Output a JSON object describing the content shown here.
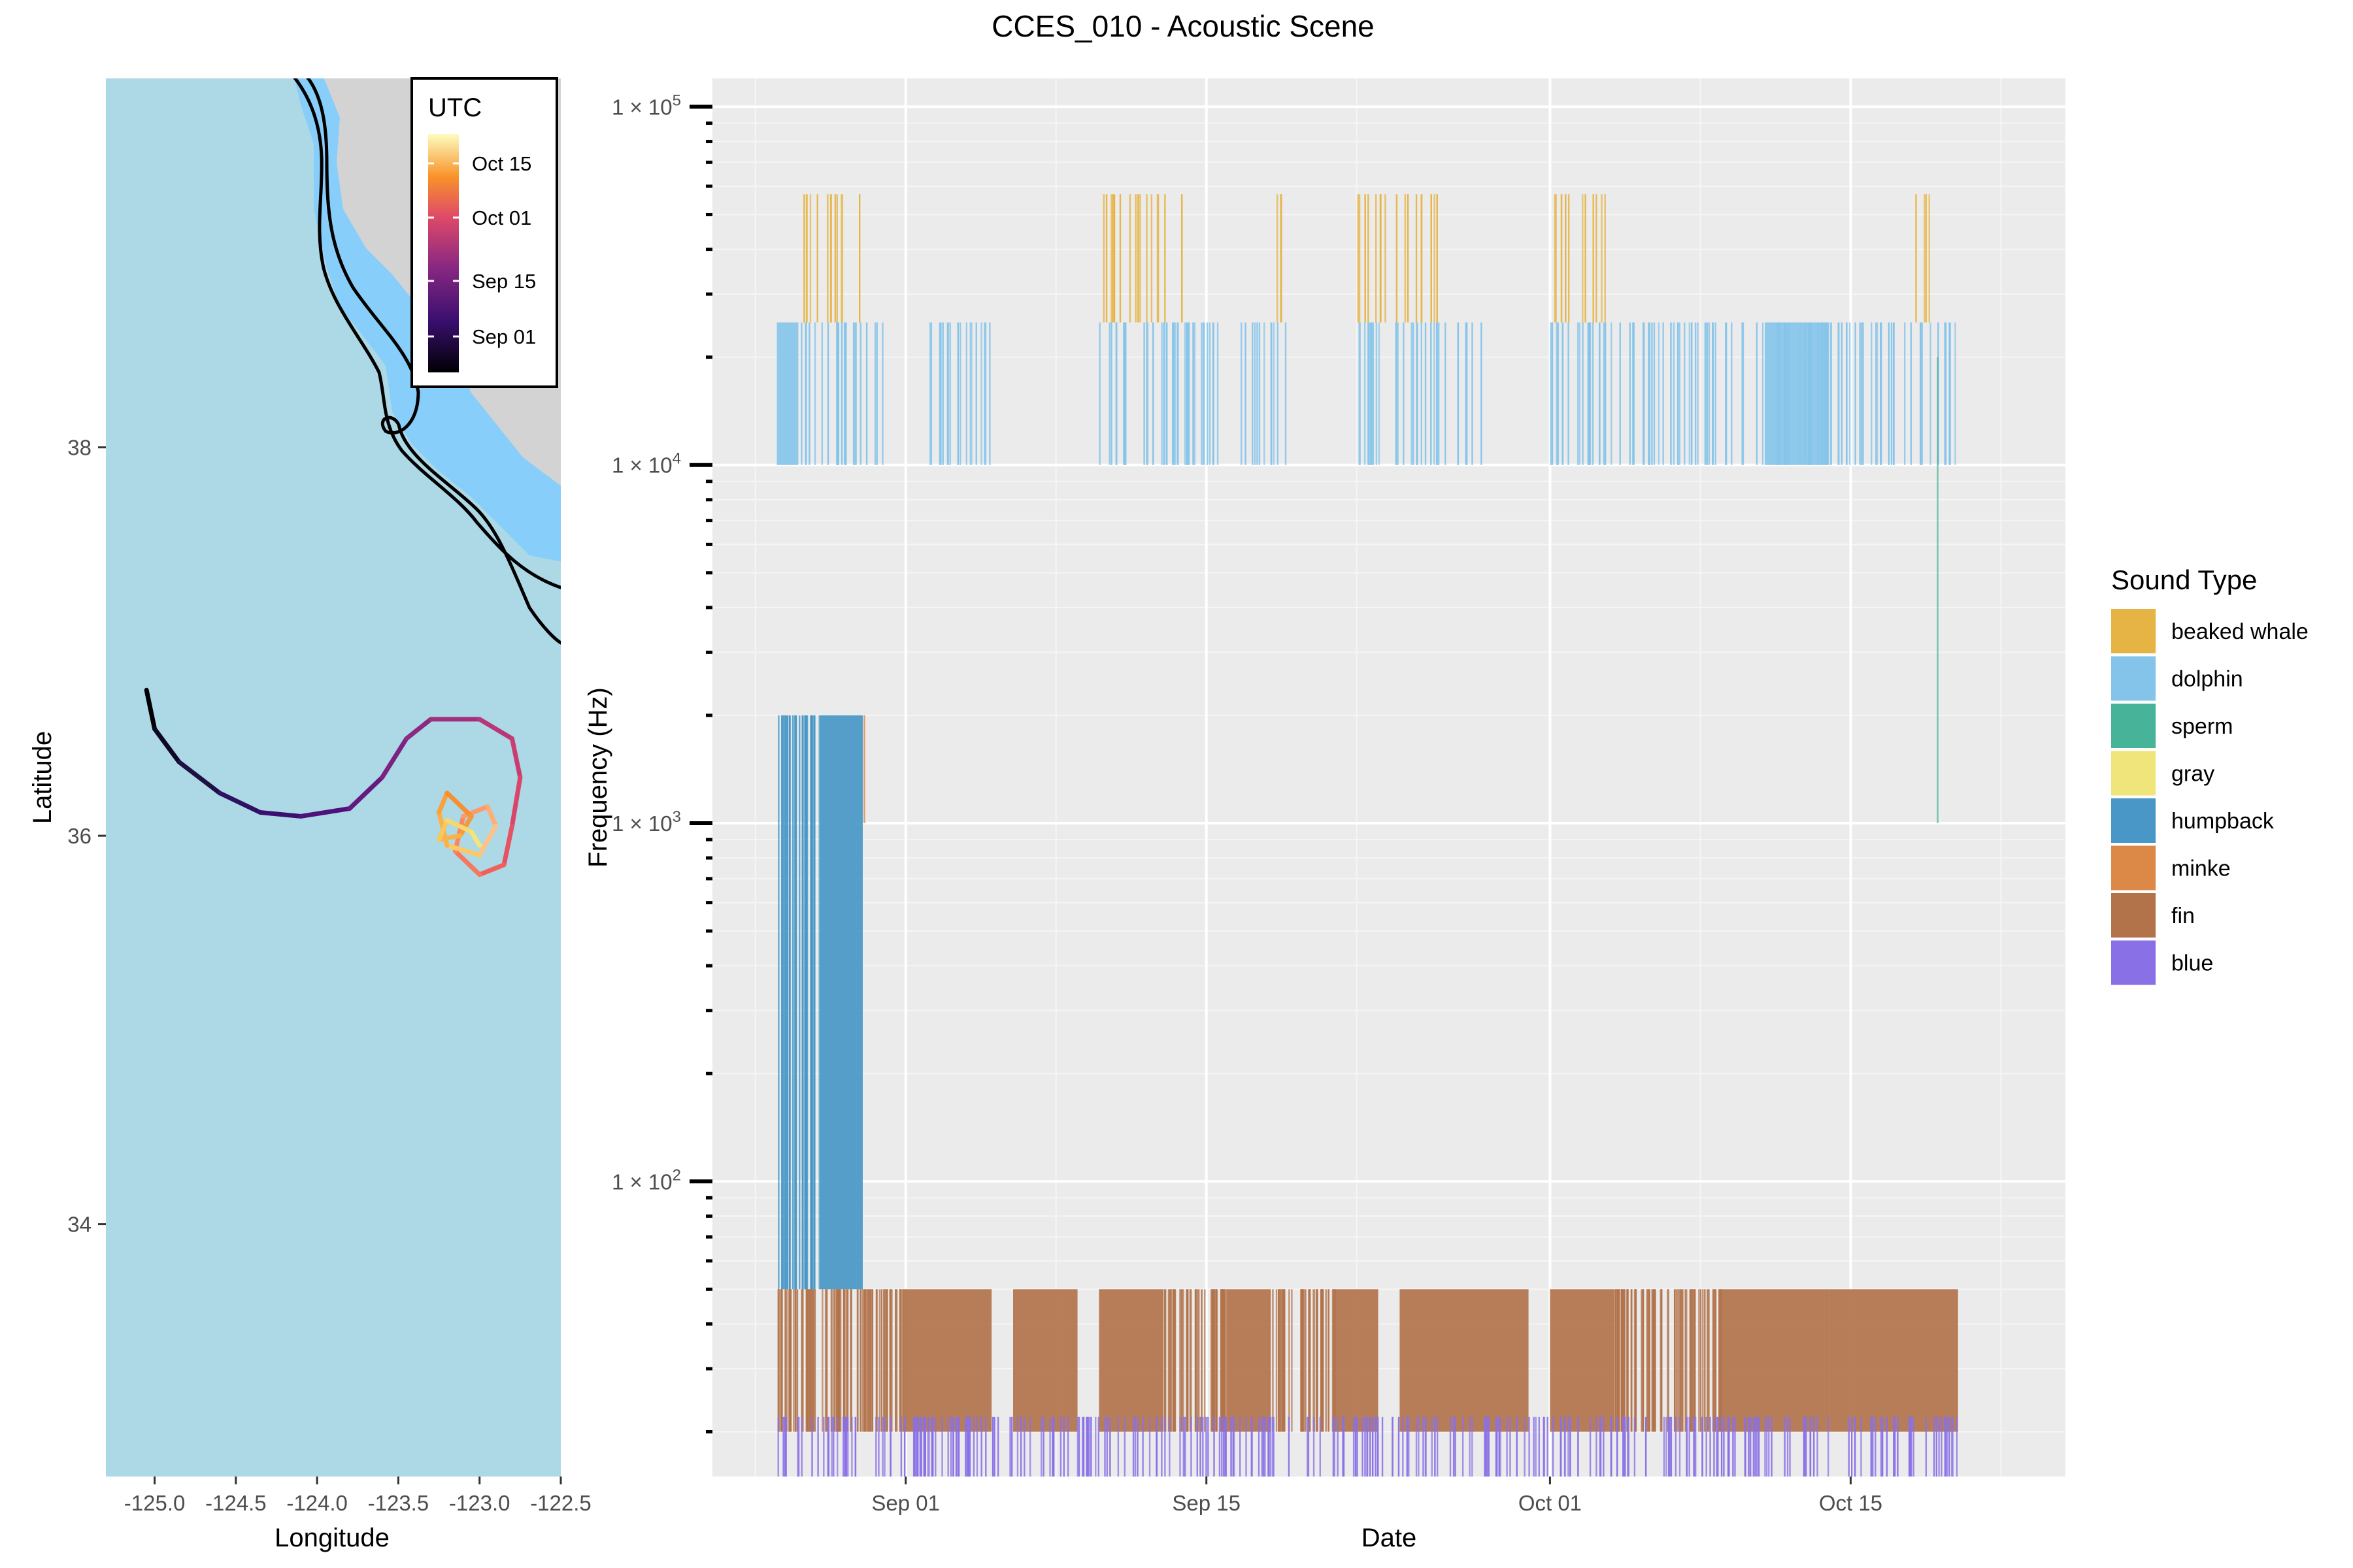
{
  "title": "CCES_010 - Acoustic Scene",
  "map": {
    "xlabel": "Longitude",
    "ylabel": "Latitude",
    "xlim": [
      -125.3,
      -122.5
    ],
    "ylim": [
      32.7,
      39.9
    ],
    "xticks": [
      -125.0,
      -124.5,
      -124.0,
      -123.5,
      -123.0,
      -122.5
    ],
    "xtick_labels": [
      "-125.0",
      "-124.5",
      "-124.0",
      "-123.5",
      "-123.0",
      "-122.5"
    ],
    "yticks": [
      34,
      36,
      38
    ],
    "ytick_labels": [
      "34",
      "36",
      "38"
    ],
    "colors": {
      "ocean": "#add8e6",
      "land": "#d3d3d3",
      "shelf": "#87cefa",
      "contour": "#000000"
    },
    "legend": {
      "title": "UTC",
      "labels": [
        "Oct 15",
        "Oct 01",
        "Sep 15",
        "Sep 01"
      ],
      "gradient": [
        "#000004",
        "#3b0f70",
        "#8c2981",
        "#de4968",
        "#fe9f6d",
        "#fcfdbf"
      ]
    }
  },
  "chart_data": {
    "type": "bar",
    "title": "CCES_010 - Acoustic Scene",
    "xlabel": "Date",
    "ylabel": "Frequency (Hz)",
    "y_scale": "log",
    "xlim": [
      "2018-08-23",
      "2018-10-25"
    ],
    "ylim": [
      15,
      120000
    ],
    "grid": true,
    "x_ticks": [
      {
        "date": "2018-09-01",
        "label": "Sep 01"
      },
      {
        "date": "2018-09-15",
        "label": "Sep 15"
      },
      {
        "date": "2018-10-01",
        "label": "Oct 01"
      },
      {
        "date": "2018-10-15",
        "label": "Oct 15"
      }
    ],
    "y_ticks": [
      {
        "value": 100,
        "label_base": "1 × 10",
        "label_exp": "2"
      },
      {
        "value": 1000,
        "label_base": "1 × 10",
        "label_exp": "3"
      },
      {
        "value": 10000,
        "label_base": "1 × 10",
        "label_exp": "4"
      },
      {
        "value": 100000,
        "label_base": "1 × 10",
        "label_exp": "5"
      }
    ],
    "legend": {
      "title": "Sound Type",
      "position": "right",
      "items": [
        {
          "label": "beaked whale",
          "color": "#e6b444"
        },
        {
          "label": "dolphin",
          "color": "#85c4ea"
        },
        {
          "label": "sperm",
          "color": "#47b398"
        },
        {
          "label": "gray",
          "color": "#efe57a"
        },
        {
          "label": "humpback",
          "color": "#4897c6"
        },
        {
          "label": "minke",
          "color": "#dc8948"
        },
        {
          "label": "fin",
          "color": "#b2734b"
        },
        {
          "label": "blue",
          "color": "#8970e6"
        }
      ]
    },
    "series": [
      {
        "name": "beaked whale",
        "freq_range": [
          25000,
          57000
        ],
        "color": "#e6b444",
        "dense_periods": [],
        "sparse_periods": [
          [
            "2018-08-27",
            "2018-08-30"
          ],
          [
            "2018-09-10",
            "2018-09-14"
          ],
          [
            "2018-09-18",
            "2018-09-19"
          ],
          [
            "2018-09-22",
            "2018-09-26"
          ],
          [
            "2018-10-01",
            "2018-10-04"
          ],
          [
            "2018-10-18",
            "2018-10-19"
          ]
        ],
        "sparse_count": 70
      },
      {
        "name": "dolphin",
        "freq_range": [
          10000,
          25000
        ],
        "color": "#85c4ea",
        "dense_periods": [
          [
            "2018-08-26",
            "2018-08-27"
          ],
          [
            "2018-10-11",
            "2018-10-14"
          ]
        ],
        "sparse_periods": [
          [
            "2018-08-27",
            "2018-08-31"
          ],
          [
            "2018-09-02",
            "2018-09-05"
          ],
          [
            "2018-09-10",
            "2018-09-19"
          ],
          [
            "2018-09-22",
            "2018-09-28"
          ],
          [
            "2018-10-01",
            "2018-10-20"
          ]
        ],
        "sparse_count": 240
      },
      {
        "name": "sperm",
        "freq_range": [
          1000,
          20000
        ],
        "color": "#47b398",
        "dense_periods": [],
        "sparse_periods": [
          [
            "2018-10-19",
            "2018-10-19"
          ]
        ],
        "sparse_count": 1
      },
      {
        "name": "humpback",
        "freq_range": [
          50,
          2000
        ],
        "color": "#4897c6",
        "dense_periods": [
          [
            "2018-08-28",
            "2018-08-30"
          ]
        ],
        "sparse_periods": [
          [
            "2018-08-26",
            "2018-08-28"
          ]
        ],
        "sparse_count": 30
      },
      {
        "name": "minke",
        "freq_range": [
          1000,
          2000
        ],
        "color": "#dc8948",
        "dense_periods": [],
        "sparse_periods": [
          [
            "2018-08-30",
            "2018-08-30"
          ]
        ],
        "sparse_count": 1
      },
      {
        "name": "fin",
        "freq_range": [
          20,
          50
        ],
        "color": "#b2734b",
        "dense_periods": [
          [
            "2018-09-01",
            "2018-09-05"
          ],
          [
            "2018-09-06",
            "2018-09-09"
          ],
          [
            "2018-09-10",
            "2018-09-13"
          ],
          [
            "2018-09-16",
            "2018-09-18"
          ],
          [
            "2018-09-21",
            "2018-09-23"
          ],
          [
            "2018-09-24",
            "2018-09-30"
          ],
          [
            "2018-10-01",
            "2018-10-04"
          ],
          [
            "2018-10-09",
            "2018-10-14"
          ],
          [
            "2018-10-14",
            "2018-10-20"
          ]
        ],
        "sparse_periods": [
          [
            "2018-08-26",
            "2018-09-01"
          ],
          [
            "2018-09-13",
            "2018-09-16"
          ],
          [
            "2018-09-18",
            "2018-09-21"
          ],
          [
            "2018-10-04",
            "2018-10-09"
          ]
        ],
        "sparse_count": 260
      },
      {
        "name": "blue",
        "freq_range": [
          15,
          22
        ],
        "color": "#8970e6",
        "dense_periods": [],
        "sparse_periods": [
          [
            "2018-08-26",
            "2018-10-20"
          ]
        ],
        "sparse_count": 320
      }
    ]
  }
}
